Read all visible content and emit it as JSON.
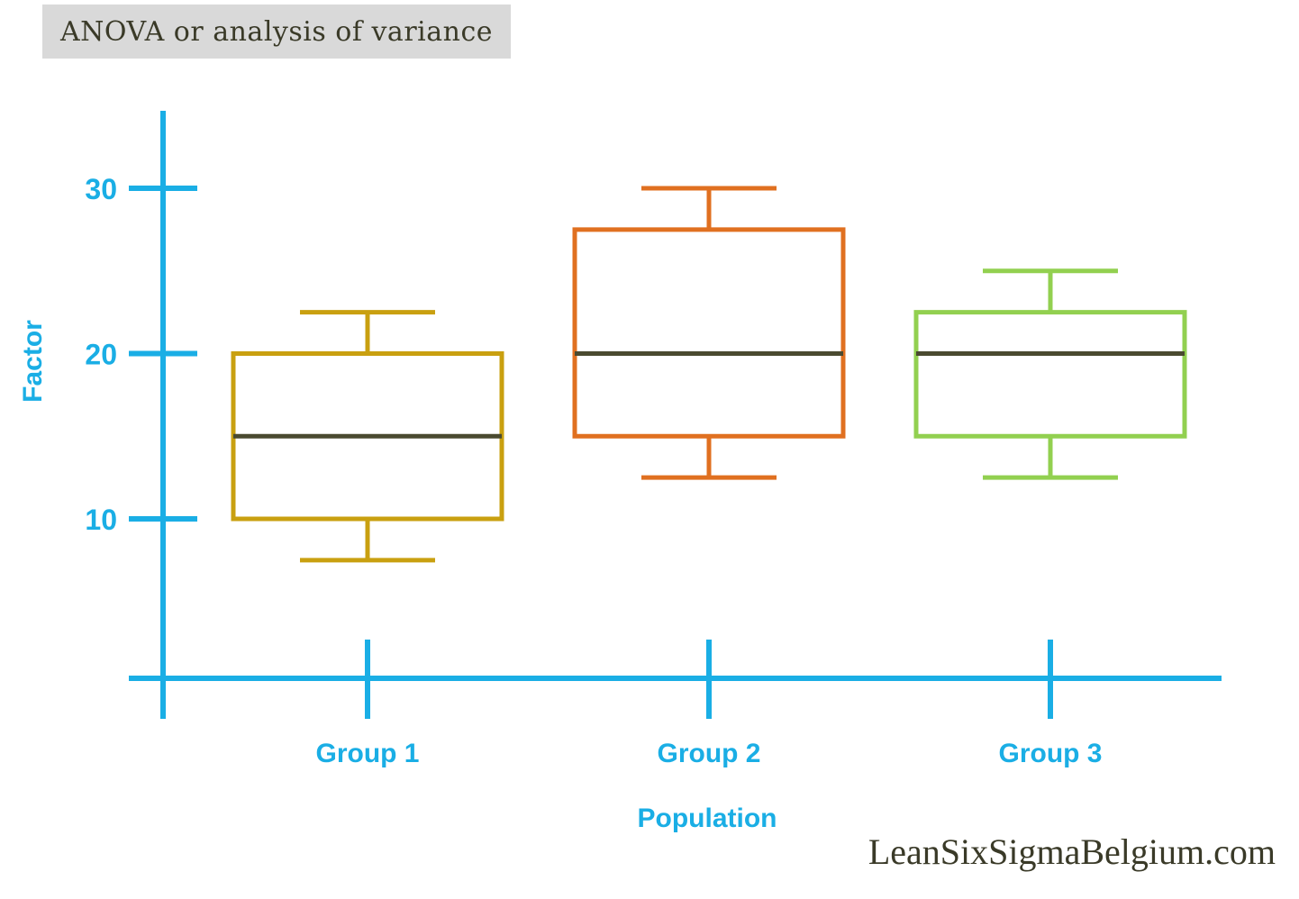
{
  "chart_data": {
    "type": "box",
    "title": "ANOVA or analysis of variance",
    "xlabel": "Population",
    "ylabel": "Factor",
    "categories": [
      "Group 1",
      "Group 2",
      "Group 3"
    ],
    "yticks": [
      10,
      20,
      30
    ],
    "ylim": [
      0,
      35
    ],
    "series": [
      {
        "whisker_low": 7.5,
        "q1": 10,
        "median": 15,
        "q3": 20,
        "whisker_high": 22.5,
        "color": "#c9a010"
      },
      {
        "whisker_low": 12.5,
        "q1": 15,
        "median": 20,
        "q3": 27.5,
        "whisker_high": 30,
        "color": "#e07020"
      },
      {
        "whisker_low": 12.5,
        "q1": 15,
        "median": 20,
        "q3": 22.5,
        "whisker_high": 25,
        "color": "#92d050"
      }
    ],
    "axis_color": "#1aaee5",
    "median_color": "#4a4a30",
    "grid": false
  },
  "watermark": "LeanSixSigmaBelgium.com"
}
